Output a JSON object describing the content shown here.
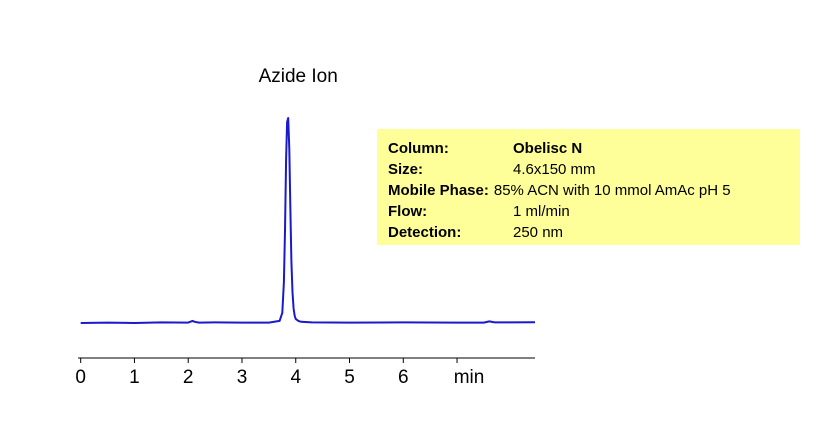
{
  "chart_data": {
    "type": "line",
    "title": "",
    "xlabel": "min",
    "ylabel": "",
    "xlim": [
      -0.05,
      8.45
    ],
    "ylim": [
      -0.08,
      1.0
    ],
    "x_ticks": [
      0,
      1,
      2,
      3,
      4,
      5,
      6
    ],
    "x_tick_labels": [
      "0",
      "1",
      "2",
      "3",
      "4",
      "5",
      "6"
    ],
    "x_unit_label": "min",
    "line_color": "#1a1acc",
    "series": [
      {
        "x": [
          0,
          0.5,
          1.0,
          1.5,
          2.0,
          2.08,
          2.12,
          2.2,
          2.5,
          3.0,
          3.5,
          3.7,
          3.75,
          3.78,
          3.8,
          3.82,
          3.84,
          3.86,
          3.88,
          3.9,
          3.92,
          3.94,
          3.96,
          3.98,
          4.0,
          4.05,
          4.1,
          4.3,
          5.0,
          6.0,
          7.0,
          7.5,
          7.6,
          7.7,
          8.45
        ],
        "y": [
          0.0,
          0.002,
          0.0,
          0.003,
          0.002,
          0.01,
          0.006,
          0.002,
          0.003,
          0.002,
          0.002,
          0.01,
          0.05,
          0.2,
          0.45,
          0.8,
          0.98,
          1.0,
          0.85,
          0.55,
          0.3,
          0.15,
          0.07,
          0.035,
          0.02,
          0.01,
          0.006,
          0.003,
          0.002,
          0.003,
          0.002,
          0.002,
          0.008,
          0.003,
          0.004
        ]
      }
    ],
    "annotations": [
      {
        "text": "Azide Ion",
        "x": 3.86
      }
    ]
  },
  "info_box": {
    "rows": [
      {
        "key": "Column:",
        "value": "Obelisc N",
        "value_bold": true
      },
      {
        "key": "Size:",
        "value": "4.6x150 mm",
        "value_bold": false
      },
      {
        "key": "Mobile Phase:",
        "value": "85% ACN with 10 mmol AmAc pH 5",
        "value_bold": false
      },
      {
        "key": "Flow:",
        "value": "1 ml/min",
        "value_bold": false
      },
      {
        "key": "Detection:",
        "value": "250 nm",
        "value_bold": false
      }
    ],
    "background": "#ffff99"
  }
}
